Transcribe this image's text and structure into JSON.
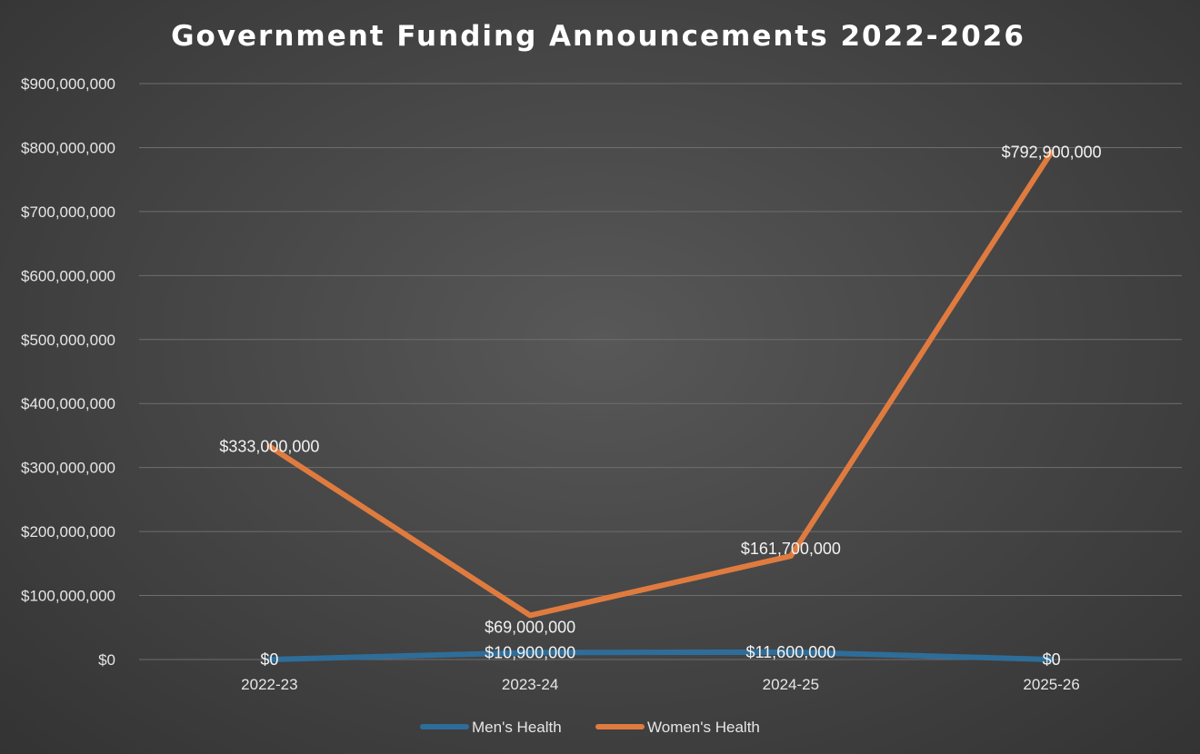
{
  "chart_data": {
    "type": "line",
    "title": "Government Funding Announcements 2022-2026",
    "categories": [
      "2022-23",
      "2023-24",
      "2024-25",
      "2025-26"
    ],
    "series": [
      {
        "name": "Men's Health",
        "color": "#2E6D99",
        "values": [
          0,
          10900000,
          11600000,
          0
        ],
        "labels": [
          "$0",
          "$10,900,000",
          "$11,600,000",
          "$0"
        ]
      },
      {
        "name": "Women's Health",
        "color": "#E07B3F",
        "values": [
          333000000,
          69000000,
          161700000,
          792900000
        ],
        "labels": [
          "$333,000,000",
          "$69,000,000",
          "$161,700,000",
          "$792,900,000"
        ]
      }
    ],
    "ylim": [
      0,
      900000000
    ],
    "yticks": [
      0,
      100000000,
      200000000,
      300000000,
      400000000,
      500000000,
      600000000,
      700000000,
      800000000,
      900000000
    ],
    "ytick_labels": [
      "$0",
      "$100,000,000",
      "$200,000,000",
      "$300,000,000",
      "$400,000,000",
      "$500,000,000",
      "$600,000,000",
      "$700,000,000",
      "$800,000,000",
      "$900,000,000"
    ],
    "grid": true,
    "legend": "bottom",
    "gridline_color": "#6e6e6e"
  }
}
